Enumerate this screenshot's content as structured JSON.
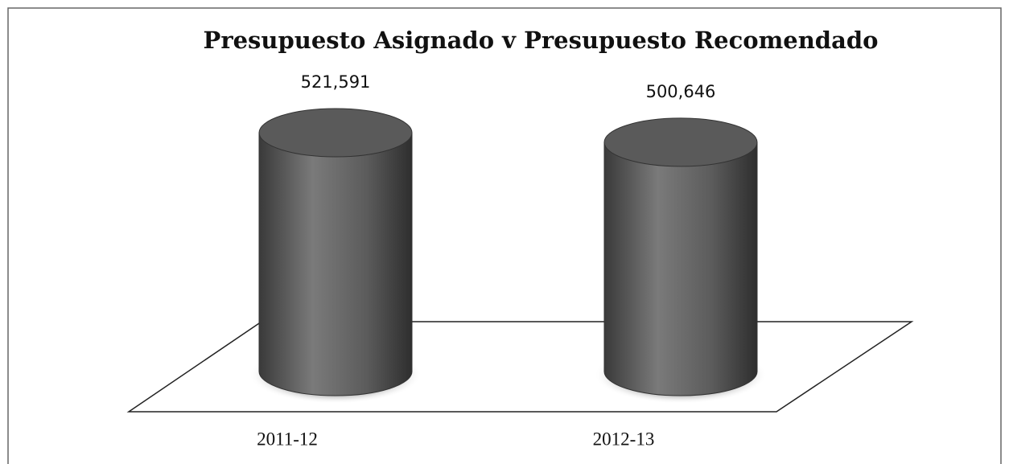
{
  "chart_data": {
    "type": "cylinder",
    "title": "Presupuesto Asignado  v  Presupuesto Recomendado",
    "categories": [
      "2011-12",
      "2012-13"
    ],
    "values": [
      521591,
      500646
    ],
    "value_labels": [
      "521,591",
      "500,646"
    ],
    "color": "#5a5a5a"
  }
}
